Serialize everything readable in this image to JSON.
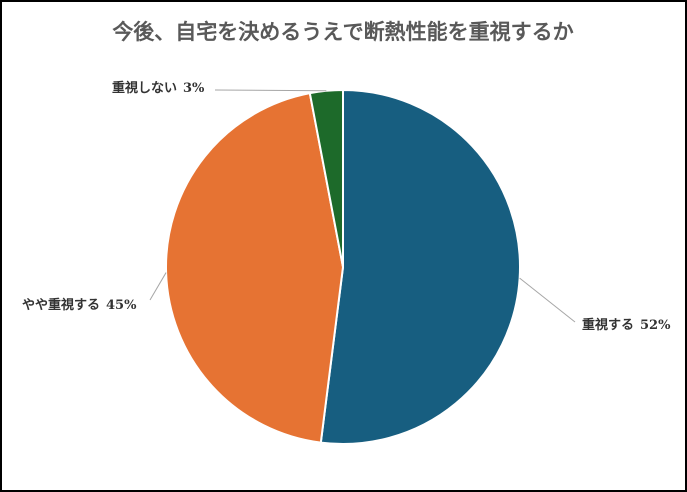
{
  "chart_data": {
    "type": "pie",
    "title": "今後、自宅を決めるうえで断熱性能を重視するか",
    "categories": [
      "重視する",
      "やや重視する",
      "重視しない"
    ],
    "values": [
      52,
      45,
      3
    ],
    "value_labels": [
      "52%",
      "45%",
      "3%"
    ],
    "colors": [
      "#175e80",
      "#e67333",
      "#1d6a2a"
    ]
  }
}
